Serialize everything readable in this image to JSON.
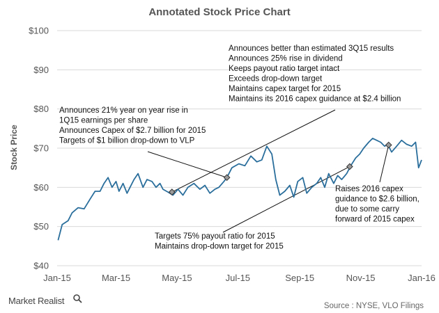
{
  "chart_data": {
    "type": "line",
    "title": "Annotated Stock Price Chart",
    "ylabel": "Stock Price",
    "xlabel": "",
    "ylim": [
      40,
      100
    ],
    "yticks": [
      40,
      50,
      60,
      70,
      80,
      90,
      100
    ],
    "ytick_labels": [
      "$40",
      "$50",
      "$60",
      "$70",
      "$80",
      "$90",
      "$100"
    ],
    "xlim": [
      "2015-01-01",
      "2016-01-01"
    ],
    "xticks": [
      "2015-01-01",
      "2015-03-01",
      "2015-05-01",
      "2015-07-01",
      "2015-09-01",
      "2015-11-01",
      "2016-01-01"
    ],
    "xtick_labels": [
      "Jan-15",
      "Mar-15",
      "May-15",
      "Jul-15",
      "Sep-15",
      "Nov-15",
      "Jan-16"
    ],
    "grid": true,
    "series": [
      {
        "color": "#2a6e9c",
        "points": [
          [
            "2015-01-02",
            46.5
          ],
          [
            "2015-01-06",
            50.5
          ],
          [
            "2015-01-12",
            51.5
          ],
          [
            "2015-01-16",
            53.5
          ],
          [
            "2015-01-22",
            54.8
          ],
          [
            "2015-01-28",
            54.5
          ],
          [
            "2015-02-03",
            57.0
          ],
          [
            "2015-02-08",
            59.0
          ],
          [
            "2015-02-13",
            59.0
          ],
          [
            "2015-02-17",
            61.0
          ],
          [
            "2015-02-21",
            62.5
          ],
          [
            "2015-02-25",
            60.0
          ],
          [
            "2015-03-01",
            61.5
          ],
          [
            "2015-03-04",
            59.0
          ],
          [
            "2015-03-08",
            61.0
          ],
          [
            "2015-03-12",
            58.5
          ],
          [
            "2015-03-15",
            60.0
          ],
          [
            "2015-03-19",
            62.0
          ],
          [
            "2015-03-23",
            63.5
          ],
          [
            "2015-03-28",
            60.0
          ],
          [
            "2015-04-01",
            62.0
          ],
          [
            "2015-04-06",
            61.5
          ],
          [
            "2015-04-10",
            60.0
          ],
          [
            "2015-04-14",
            61.0
          ],
          [
            "2015-04-17",
            59.5
          ],
          [
            "2015-04-22",
            58.8
          ],
          [
            "2015-04-27",
            58.0
          ],
          [
            "2015-05-02",
            59.5
          ],
          [
            "2015-05-07",
            58.0
          ],
          [
            "2015-05-12",
            60.0
          ],
          [
            "2015-05-18",
            61.0
          ],
          [
            "2015-05-24",
            59.5
          ],
          [
            "2015-05-29",
            60.5
          ],
          [
            "2015-06-03",
            58.5
          ],
          [
            "2015-06-08",
            59.5
          ],
          [
            "2015-06-12",
            60.0
          ],
          [
            "2015-06-17",
            61.5
          ],
          [
            "2015-06-20",
            62.5
          ],
          [
            "2015-06-25",
            65.0
          ],
          [
            "2015-07-02",
            66.0
          ],
          [
            "2015-07-08",
            65.5
          ],
          [
            "2015-07-14",
            68.0
          ],
          [
            "2015-07-20",
            66.5
          ],
          [
            "2015-07-25",
            67.0
          ],
          [
            "2015-07-30",
            70.5
          ],
          [
            "2015-08-04",
            68.5
          ],
          [
            "2015-08-08",
            62.0
          ],
          [
            "2015-08-12",
            58.0
          ],
          [
            "2015-08-17",
            59.0
          ],
          [
            "2015-08-22",
            60.5
          ],
          [
            "2015-08-26",
            57.5
          ],
          [
            "2015-08-30",
            61.5
          ],
          [
            "2015-09-04",
            62.5
          ],
          [
            "2015-09-08",
            58.5
          ],
          [
            "2015-09-13",
            60.0
          ],
          [
            "2015-09-18",
            61.0
          ],
          [
            "2015-09-22",
            62.5
          ],
          [
            "2015-09-26",
            60.0
          ],
          [
            "2015-09-30",
            63.5
          ],
          [
            "2015-10-05",
            61.0
          ],
          [
            "2015-10-09",
            63.0
          ],
          [
            "2015-10-13",
            62.0
          ],
          [
            "2015-10-18",
            63.5
          ],
          [
            "2015-10-22",
            65.5
          ],
          [
            "2015-10-27",
            67.5
          ],
          [
            "2015-10-31",
            68.5
          ],
          [
            "2015-11-04",
            70.0
          ],
          [
            "2015-11-09",
            71.5
          ],
          [
            "2015-11-13",
            72.5
          ],
          [
            "2015-11-17",
            72.0
          ],
          [
            "2015-11-21",
            71.5
          ],
          [
            "2015-11-25",
            70.5
          ],
          [
            "2015-11-28",
            71.0
          ],
          [
            "2015-12-02",
            69.0
          ],
          [
            "2015-12-07",
            70.5
          ],
          [
            "2015-12-12",
            72.0
          ],
          [
            "2015-12-17",
            71.0
          ],
          [
            "2015-12-22",
            70.5
          ],
          [
            "2015-12-26",
            71.5
          ],
          [
            "2015-12-29",
            65.0
          ],
          [
            "2016-01-01",
            67.0
          ]
        ]
      }
    ],
    "markers": [
      {
        "date": "2015-04-26",
        "value": 58.8
      },
      {
        "date": "2015-06-20",
        "value": 62.5
      },
      {
        "date": "2015-10-21",
        "value": 65.3
      },
      {
        "date": "2015-11-29",
        "value": 70.8
      }
    ],
    "annotations": [
      {
        "lines": [
          "Announces better than estimated 3Q15 results",
          "Announces 25% rise in dividend",
          "Keeps payout ratio target intact",
          "Exceeds drop-down target",
          "Maintains capex target for 2015",
          "Maintains its 2016 capex guidance at $2.4 billion"
        ]
      },
      {
        "lines": [
          "Announces 21% year on year rise in",
          "1Q15 earnings per share",
          "Announces Capex of $2.7 billion for 2015",
          "Targets of $1 billion drop-down to VLP"
        ]
      },
      {
        "lines": [
          "Targets 75% payout ratio for 2015",
          "Maintains drop-down target for 2015"
        ]
      },
      {
        "lines": [
          "Raises 2016 capex",
          "guidance to $2.6 billion,",
          "due to  some carry",
          "forward of 2015 capex"
        ]
      }
    ]
  },
  "source": "Source : NYSE, VLO Filings",
  "brand": "Market Realist"
}
